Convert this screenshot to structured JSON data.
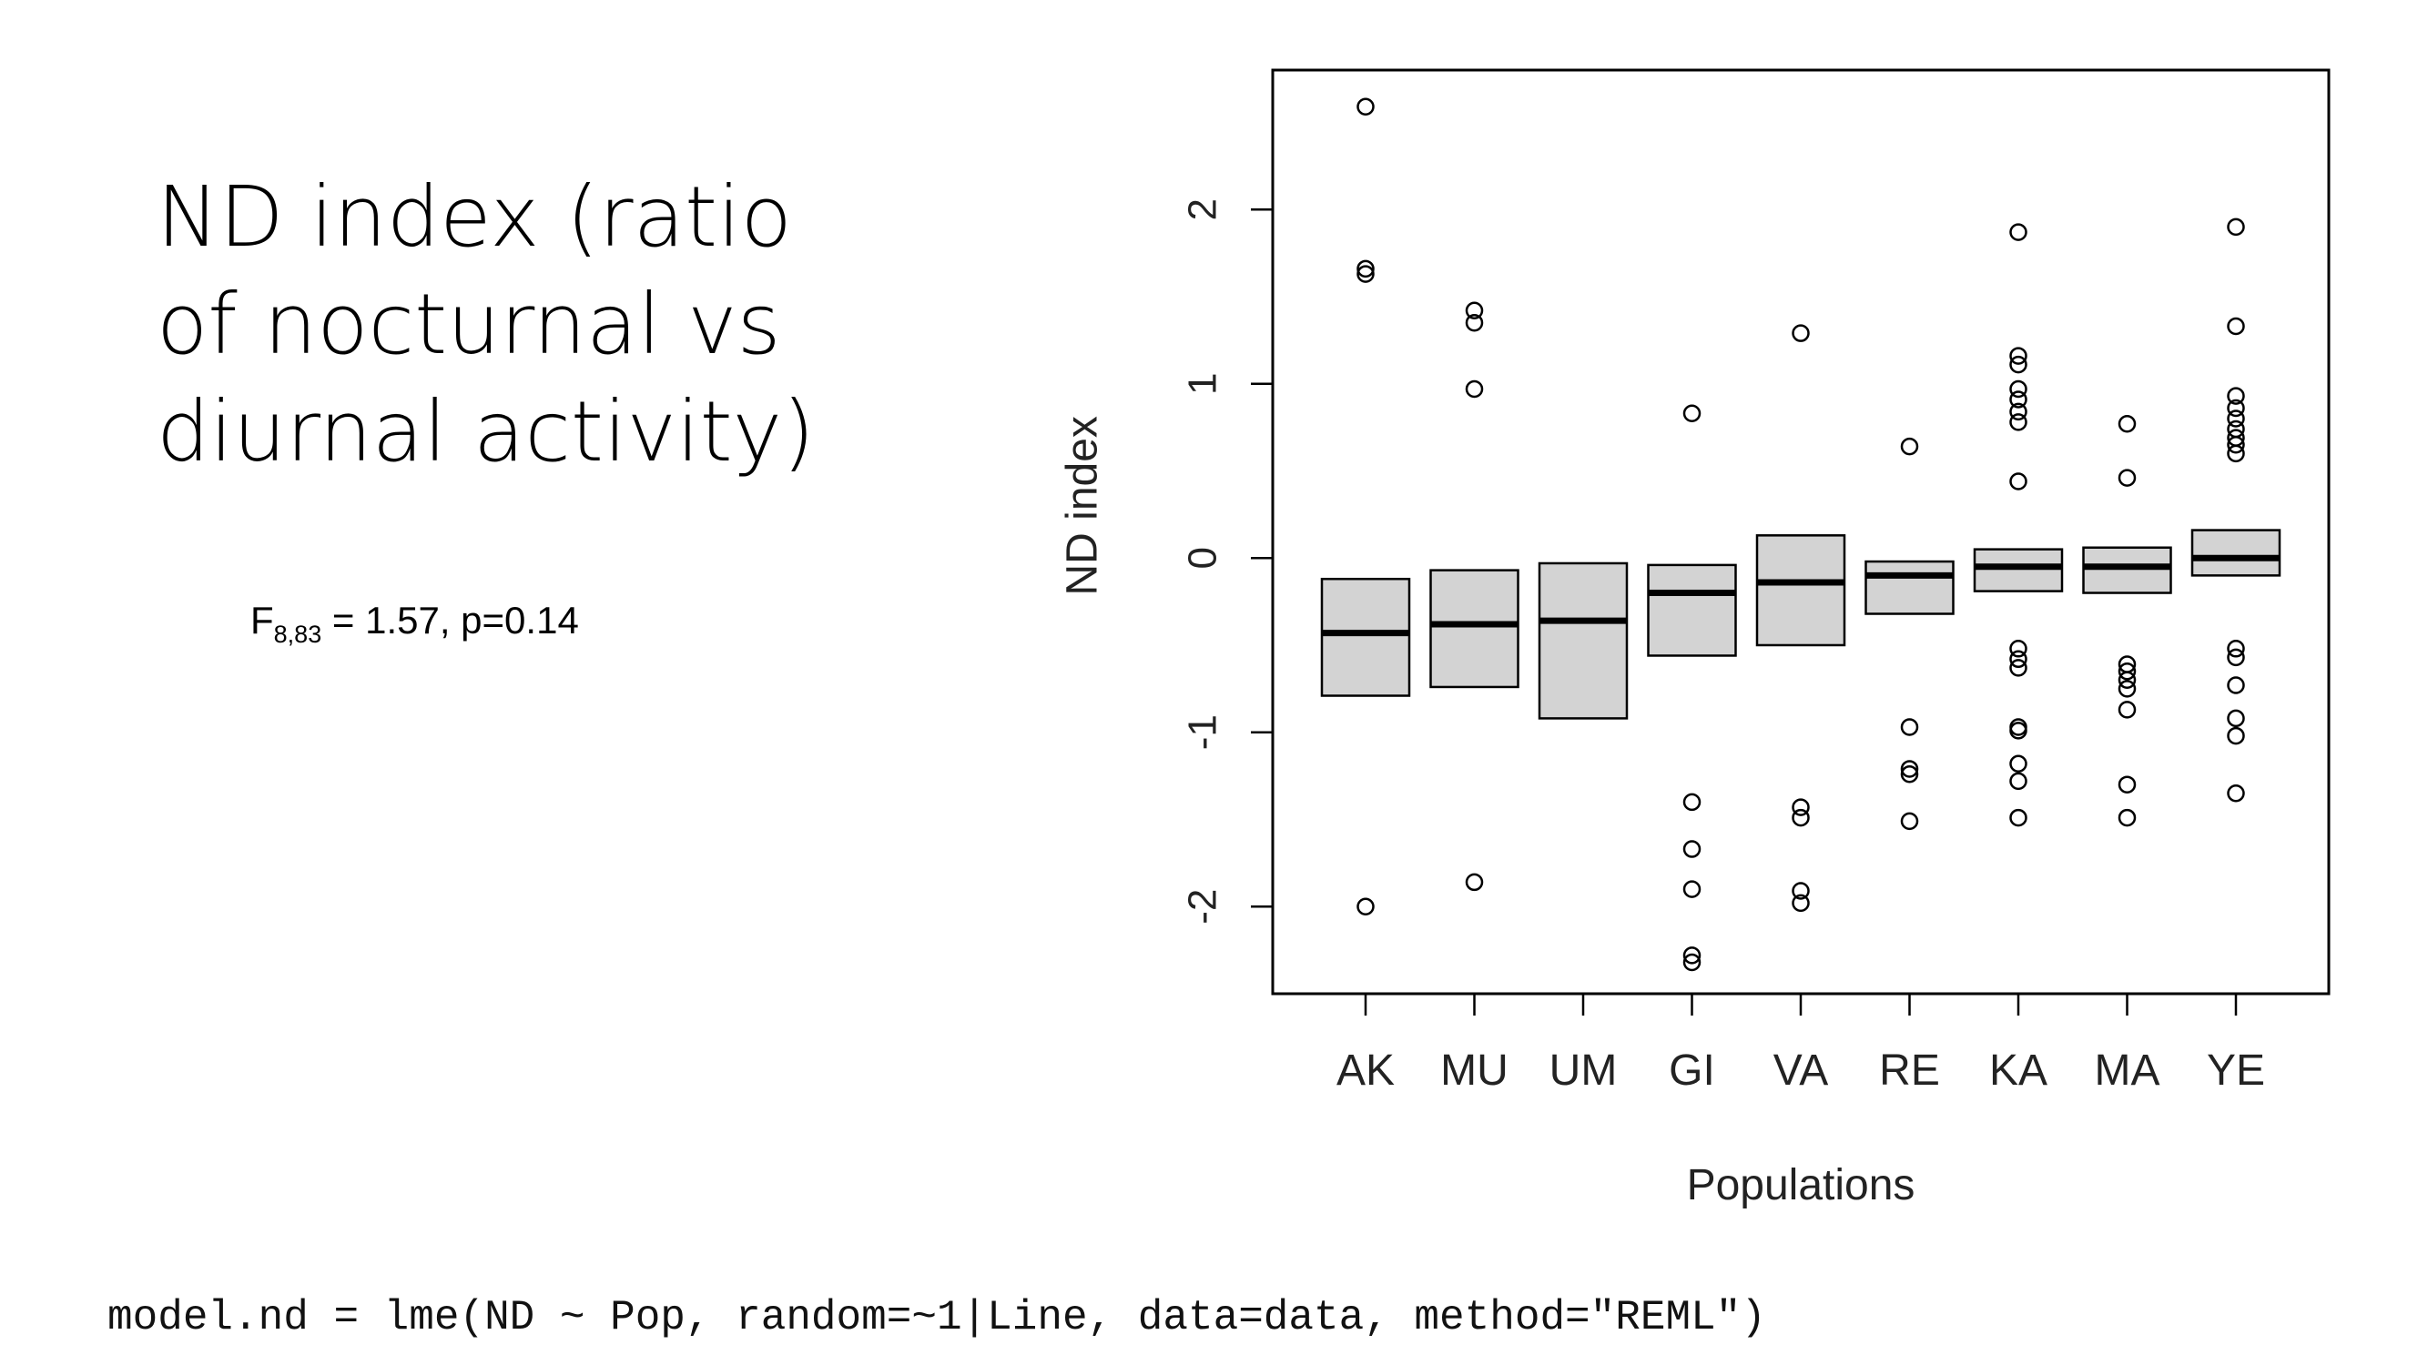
{
  "slide": {
    "title_lines": [
      "ND index (ratio",
      "of nocturnal vs",
      "diurnal activity)"
    ],
    "stat": {
      "F": "F",
      "df": "8,83",
      "rest": " = 1.57, p=0.14"
    },
    "code": "model.nd = lme(ND ~ Pop, random=~1|Line, data=data, method=\"REML\")"
  },
  "chart_data": {
    "type": "boxplot",
    "title": "",
    "xlabel": "Populations",
    "ylabel": "ND index",
    "ylim": [
      -2.5,
      2.8
    ],
    "yticks": [
      "-2",
      "-1",
      "0",
      "1",
      "2"
    ],
    "ytick_values": [
      -2,
      -1,
      0,
      1,
      2
    ],
    "grid": false,
    "colors": {
      "box_fill": "#d3d3d3",
      "stroke": "#000000"
    },
    "categories": [
      "AK",
      "MU",
      "UM",
      "GI",
      "VA",
      "RE",
      "KA",
      "MA",
      "YE"
    ],
    "boxes": [
      {
        "q1": -0.79,
        "median": -0.43,
        "q3": -0.12,
        "outliers": [
          2.59,
          1.66,
          1.63,
          -2.0
        ]
      },
      {
        "q1": -0.74,
        "median": -0.38,
        "q3": -0.07,
        "outliers": [
          1.42,
          1.35,
          0.97,
          -1.86
        ]
      },
      {
        "q1": -0.92,
        "median": -0.36,
        "q3": -0.03,
        "outliers": []
      },
      {
        "q1": -0.56,
        "median": -0.2,
        "q3": -0.04,
        "outliers": [
          0.83,
          -1.4,
          -1.67,
          -1.9,
          -2.28,
          -2.32
        ]
      },
      {
        "q1": -0.5,
        "median": -0.14,
        "q3": 0.13,
        "outliers": [
          1.29,
          -1.43,
          -1.49,
          -1.91,
          -1.98
        ]
      },
      {
        "q1": -0.32,
        "median": -0.1,
        "q3": -0.02,
        "outliers": [
          0.64,
          -0.97,
          -1.21,
          -1.24,
          -1.51
        ]
      },
      {
        "q1": -0.19,
        "median": -0.05,
        "q3": 0.05,
        "outliers": [
          1.87,
          1.16,
          1.11,
          0.97,
          0.91,
          0.84,
          0.78,
          0.44,
          -0.52,
          -0.58,
          -0.63,
          -0.97,
          -0.99,
          -1.18,
          -1.28,
          -1.49
        ]
      },
      {
        "q1": -0.2,
        "median": -0.05,
        "q3": 0.06,
        "outliers": [
          0.77,
          0.46,
          -0.61,
          -0.65,
          -0.7,
          -0.75,
          -0.87,
          -1.3,
          -1.49
        ]
      },
      {
        "q1": -0.1,
        "median": 0.0,
        "q3": 0.16,
        "outliers": [
          1.9,
          1.33,
          0.93,
          0.86,
          0.8,
          0.74,
          0.69,
          0.65,
          0.6,
          -0.52,
          -0.57,
          -0.73,
          -0.92,
          -1.02,
          -1.35
        ]
      }
    ]
  }
}
